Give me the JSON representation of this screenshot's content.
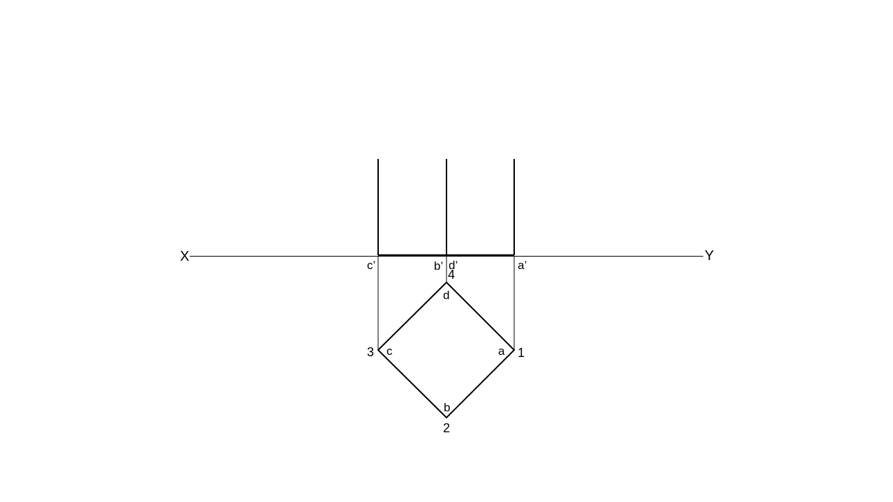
{
  "colors": {
    "background": "#ffffff",
    "line": "#000000"
  },
  "reference_line": {
    "left_label": "X",
    "right_label": "Y"
  },
  "elevation_labels": {
    "c_prime": "c’",
    "b_prime": "b’",
    "d_prime": "d’",
    "a_prime": "a’"
  },
  "plan_labels": {
    "a": "a",
    "b": "b",
    "c": "c",
    "d": "d"
  },
  "corner_numbers": {
    "n1": "1",
    "n2": "2",
    "n3": "3",
    "n4": "4"
  }
}
